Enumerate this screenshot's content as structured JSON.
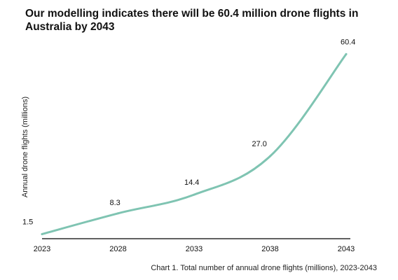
{
  "chart_data": {
    "type": "line",
    "title": "Our modelling indicates there will be 60.4 million drone flights in Australia by 2043",
    "ylabel": "Annual drone flights (millions)",
    "xlabel": "",
    "caption": "Chart 1. Total number of annual drone flights (millions), 2023-2043",
    "x": [
      2023,
      2028,
      2033,
      2038,
      2043
    ],
    "x_tick_labels": [
      "2023",
      "2028",
      "2033",
      "2038",
      "2043"
    ],
    "series": [
      {
        "values": [
          1.5,
          8.3,
          14.4,
          27.0,
          60.4
        ],
        "labels": [
          "1.5",
          "8.3",
          "14.4",
          "27.0",
          "60.4"
        ],
        "color": "#7fc4b2"
      }
    ],
    "xlim": [
      2023,
      2043
    ],
    "ylim": [
      0,
      63
    ],
    "grid": false,
    "legend": "none",
    "axis_color": "#000000"
  }
}
